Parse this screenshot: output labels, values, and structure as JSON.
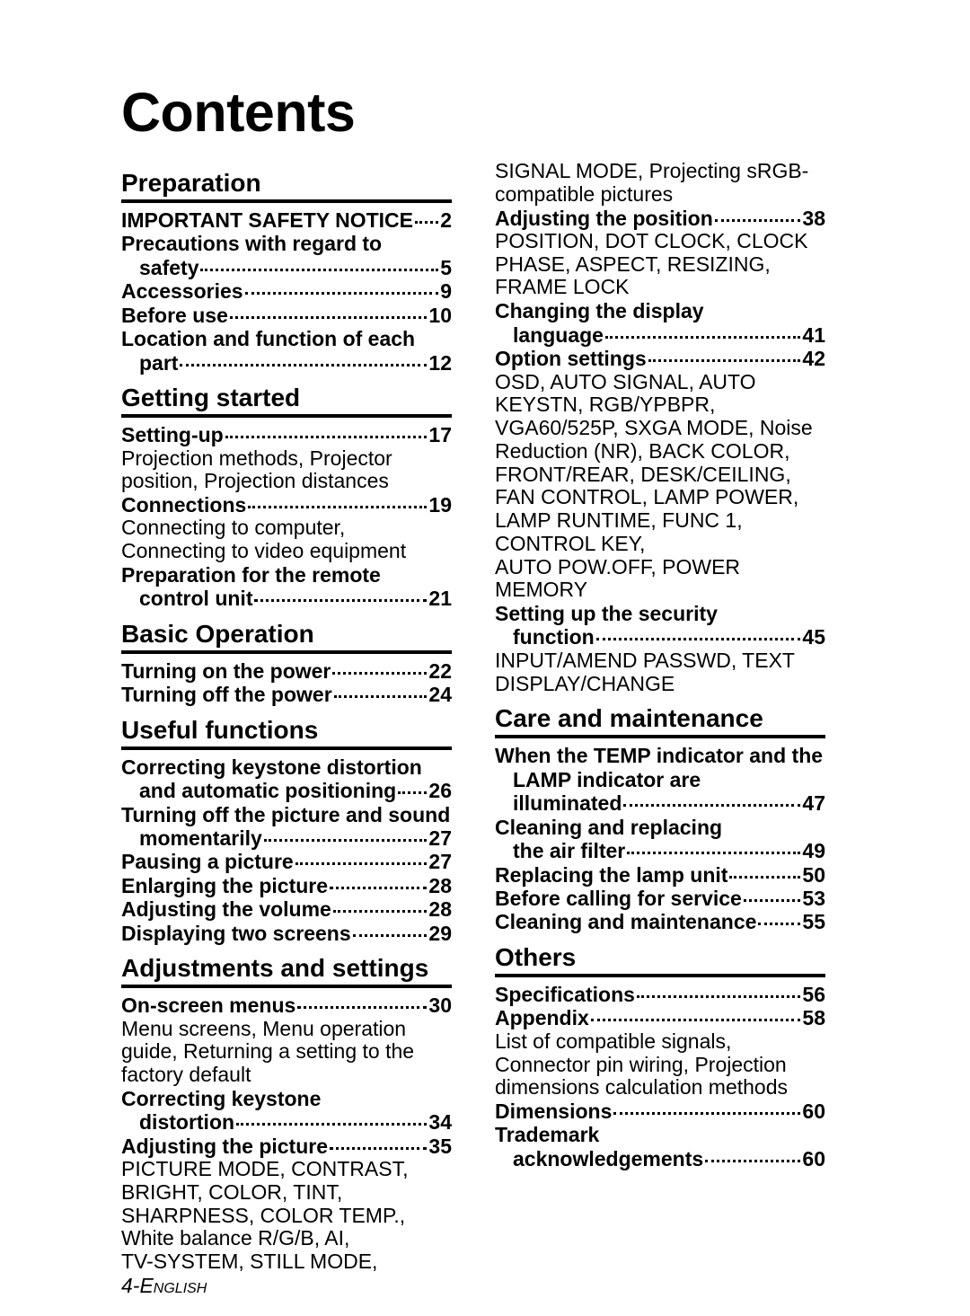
{
  "title": "Contents",
  "footer": {
    "page_number": "4-",
    "language": "English"
  },
  "colors": {
    "text": "#000000",
    "background": "#ffffff",
    "rule": "#000000"
  },
  "fonts": {
    "title_size": 61,
    "heading_size": 28,
    "body_size": 23
  },
  "columns": [
    {
      "sections": [
        {
          "heading": "Preparation",
          "items": [
            {
              "type": "entry",
              "label": "IMPORTANT SAFETY NOTICE",
              "page": "2"
            },
            {
              "type": "entry-nowrap",
              "label": "Precautions with regard to"
            },
            {
              "type": "entry-cont",
              "label": "safety",
              "page": "5"
            },
            {
              "type": "entry",
              "label": "Accessories",
              "page": "9"
            },
            {
              "type": "entry",
              "label": "Before use",
              "page": "10"
            },
            {
              "type": "entry-nowrap",
              "label": "Location and function of each"
            },
            {
              "type": "entry-cont",
              "label": "part",
              "page": "12"
            }
          ]
        },
        {
          "heading": "Getting started",
          "items": [
            {
              "type": "entry",
              "label": "Setting-up",
              "page": "17"
            },
            {
              "type": "sub",
              "text": "Projection methods, Projector position, Projection distances"
            },
            {
              "type": "entry",
              "label": "Connections",
              "page": "19"
            },
            {
              "type": "sub",
              "text": "Connecting to computer, Connecting to video equipment"
            },
            {
              "type": "entry-nowrap",
              "label": "Preparation for the remote"
            },
            {
              "type": "entry-cont",
              "label": "control unit",
              "page": "21"
            }
          ]
        },
        {
          "heading": "Basic Operation",
          "items": [
            {
              "type": "entry",
              "label": "Turning on the power",
              "page": "22"
            },
            {
              "type": "entry",
              "label": "Turning off the power",
              "page": "24"
            }
          ]
        },
        {
          "heading": "Useful functions",
          "items": [
            {
              "type": "entry-nowrap",
              "label": "Correcting keystone distortion"
            },
            {
              "type": "entry-cont",
              "label": "and automatic positioning",
              "page": "26"
            },
            {
              "type": "entry-nowrap",
              "label": "Turning off the picture and sound"
            },
            {
              "type": "entry-cont",
              "label": "momentarily",
              "page": "27"
            },
            {
              "type": "entry",
              "label": "Pausing a picture",
              "page": "27"
            },
            {
              "type": "entry",
              "label": "Enlarging the picture",
              "page": "28"
            },
            {
              "type": "entry",
              "label": "Adjusting the volume",
              "page": "28"
            },
            {
              "type": "entry",
              "label": "Displaying two screens",
              "page": "29"
            }
          ]
        },
        {
          "heading": "Adjustments and settings",
          "items": [
            {
              "type": "entry",
              "label": "On-screen menus",
              "page": "30"
            },
            {
              "type": "sub",
              "text": "Menu screens, Menu operation guide, Returning a setting to the factory default"
            },
            {
              "type": "entry-nowrap",
              "label": "Correcting keystone"
            },
            {
              "type": "entry-cont",
              "label": "distortion",
              "page": "34"
            },
            {
              "type": "entry",
              "label": "Adjusting the picture",
              "page": "35"
            },
            {
              "type": "sub",
              "text": "PICTURE MODE, CONTRAST, BRIGHT, COLOR, TINT, SHARPNESS, COLOR TEMP., White balance R/G/B, AI,"
            },
            {
              "type": "sub",
              "text": "TV-SYSTEM, STILL MODE,"
            }
          ]
        }
      ]
    },
    {
      "sections": [
        {
          "heading": "",
          "items": [
            {
              "type": "sub",
              "text": "SIGNAL MODE, Projecting sRGB-compatible pictures"
            },
            {
              "type": "entry",
              "label": "Adjusting the position",
              "page": "38"
            },
            {
              "type": "sub",
              "text": "POSITION, DOT CLOCK, CLOCK PHASE, ASPECT, RESIZING, FRAME LOCK"
            },
            {
              "type": "entry-nowrap",
              "label": "Changing the display"
            },
            {
              "type": "entry-cont",
              "label": "language",
              "page": "41"
            },
            {
              "type": "entry",
              "label": "Option settings",
              "page": "42"
            },
            {
              "type": "sub",
              "text": "OSD, AUTO SIGNAL, AUTO KEYSTN, RGB/YPBPR, VGA60/525P, SXGA MODE, Noise Reduction (NR), BACK COLOR, FRONT/REAR, DESK/CEILING, FAN CONTROL, LAMP POWER, LAMP RUNTIME, FUNC 1, CONTROL KEY,"
            },
            {
              "type": "sub",
              "text": "AUTO POW.OFF, POWER MEMORY"
            },
            {
              "type": "entry-nowrap",
              "label": "Setting up the security"
            },
            {
              "type": "entry-cont",
              "label": "function",
              "page": "45"
            },
            {
              "type": "sub",
              "text": "INPUT/AMEND PASSWD, TEXT DISPLAY/CHANGE"
            }
          ]
        },
        {
          "heading": "Care and maintenance",
          "items": [
            {
              "type": "entry-nowrap",
              "label": "When the TEMP indicator and the"
            },
            {
              "type": "entry-cont-nowrap",
              "label": "LAMP indicator are"
            },
            {
              "type": "entry-cont",
              "label": "illuminated",
              "page": "47"
            },
            {
              "type": "entry-nowrap",
              "label": "Cleaning and replacing"
            },
            {
              "type": "entry-cont",
              "label": "the air filter",
              "page": "49"
            },
            {
              "type": "entry",
              "label": "Replacing the lamp unit",
              "page": "50"
            },
            {
              "type": "entry",
              "label": "Before calling for service",
              "page": "53"
            },
            {
              "type": "entry",
              "label": "Cleaning and maintenance",
              "page": "55"
            }
          ]
        },
        {
          "heading": "Others",
          "items": [
            {
              "type": "entry",
              "label": "Specifications",
              "page": "56"
            },
            {
              "type": "entry",
              "label": "Appendix",
              "page": "58"
            },
            {
              "type": "sub",
              "text": "List of compatible signals, Connector pin wiring, Projection dimensions calculation methods"
            },
            {
              "type": "entry",
              "label": "Dimensions",
              "page": "60"
            },
            {
              "type": "entry-nowrap",
              "label": "Trademark"
            },
            {
              "type": "entry-cont",
              "label": "acknowledgements",
              "page": "60"
            }
          ]
        }
      ]
    }
  ]
}
